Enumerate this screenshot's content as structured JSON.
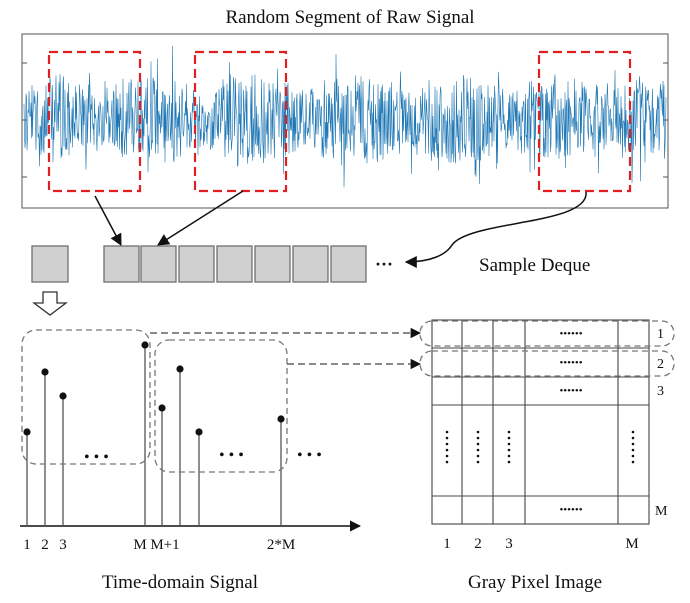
{
  "raw_signal": {
    "title": "Random Segment of Raw Signal",
    "colors": {
      "signal": "#1f77b4",
      "window": "#e02020"
    }
  },
  "deque": {
    "label": "Sample Deque",
    "ellipsis": "···"
  },
  "time_domain": {
    "title": "Time-domain Signal",
    "ellipsis": "• • •",
    "x_labels": [
      "1",
      "2",
      "3",
      "M",
      "M+1",
      "2*M"
    ]
  },
  "gray_image": {
    "title": "Gray Pixel Image",
    "col_labels": [
      "1",
      "2",
      "3",
      "M"
    ],
    "row_labels": [
      "1",
      "2",
      "3",
      "M"
    ],
    "dots_h": "••••••"
  }
}
